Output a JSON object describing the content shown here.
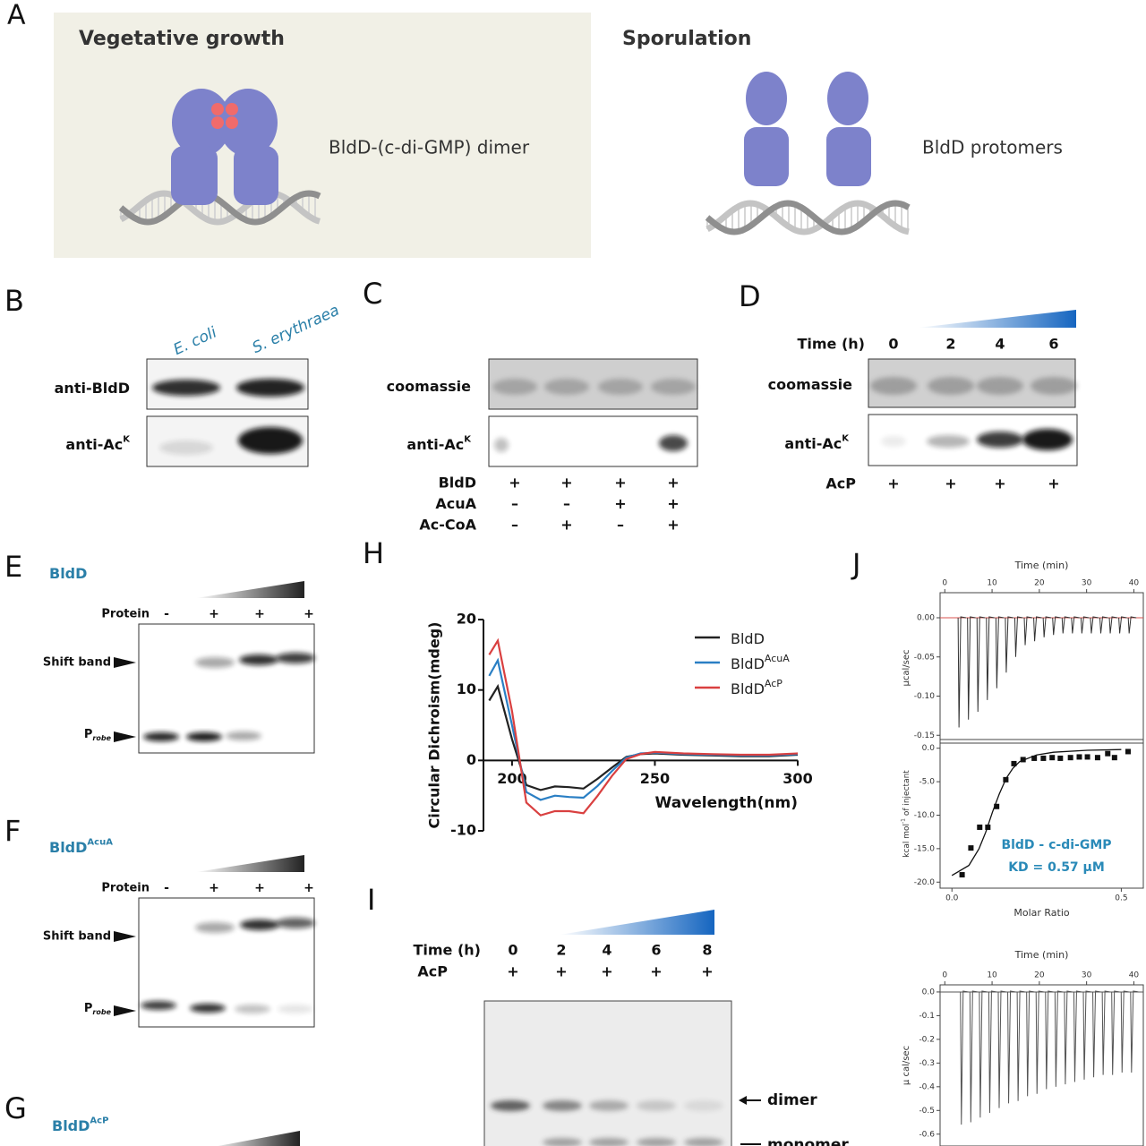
{
  "A": {
    "label": "A",
    "left": {
      "title": "Vegetative growth",
      "caption": "BldD-(c-di-GMP) dimer"
    },
    "right": {
      "title": "Sporulation",
      "caption": "BldD protomers"
    }
  },
  "B": {
    "label": "B",
    "lanes": [
      "E. coli",
      "S. erythraea"
    ],
    "rows": [
      {
        "text": "anti-BldD"
      },
      {
        "text": "anti-Ac",
        "sup": "K"
      }
    ]
  },
  "C": {
    "label": "C",
    "rows": [
      {
        "text": "coomassie"
      },
      {
        "text": "anti-Ac",
        "sup": "K"
      }
    ],
    "conditions": [
      {
        "name": "BldD",
        "signs": [
          "+",
          "+",
          "+",
          "+"
        ]
      },
      {
        "name": "AcuA",
        "signs": [
          "–",
          "–",
          "+",
          "+"
        ]
      },
      {
        "name": "Ac-CoA",
        "signs": [
          "–",
          "+",
          "–",
          "+"
        ]
      }
    ]
  },
  "D": {
    "label": "D",
    "time_label": "Time (h)",
    "times": [
      0,
      2,
      4,
      6
    ],
    "rows": [
      {
        "text": "coomassie"
      },
      {
        "text": "anti-Ac",
        "sup": "K"
      }
    ],
    "conditions": [
      {
        "name": "AcP",
        "signs": [
          "+",
          "+",
          "+",
          "+"
        ]
      }
    ]
  },
  "E": {
    "label": "E",
    "title": {
      "text": "BldD"
    },
    "protein_label": "Protein",
    "signs": [
      "-",
      "+",
      "+",
      "+"
    ],
    "shift_label": "Shift band",
    "probe": {
      "text": "P",
      "sub": "robe"
    }
  },
  "F": {
    "label": "F",
    "title": {
      "text": "BldD",
      "sup": "AcuA"
    },
    "protein_label": "Protein",
    "signs": [
      "-",
      "+",
      "+",
      "+"
    ],
    "shift_label": "Shift band",
    "probe": {
      "text": "P",
      "sub": "robe"
    }
  },
  "G": {
    "label": "G",
    "title": {
      "text": "BldD",
      "sup": "AcP"
    }
  },
  "H": {
    "label": "H"
  },
  "I": {
    "label": "I",
    "time_label": "Time (h)",
    "times": [
      0,
      2,
      4,
      6,
      8
    ],
    "conditions": [
      {
        "name": "AcP",
        "signs": [
          "+",
          "+",
          "+",
          "+",
          "+"
        ]
      }
    ],
    "bands": [
      "dimer",
      "monomer"
    ]
  },
  "J": {
    "label": "J"
  },
  "chart_data": [
    {
      "type": "line",
      "x_label": "Wavelength(nm)",
      "y_label": "Circular Dichroism(mdeg)",
      "xlim": [
        190,
        300
      ],
      "xticks": [
        200,
        250,
        300
      ],
      "ylim": [
        -10,
        20
      ],
      "yticks": [
        -10,
        0,
        10,
        20
      ],
      "x": [
        192,
        195,
        200,
        205,
        210,
        215,
        220,
        225,
        230,
        235,
        240,
        245,
        250,
        260,
        270,
        280,
        290,
        300
      ],
      "series": [
        {
          "name": "BldD",
          "color": "#222222",
          "values": [
            8.5,
            10.5,
            3,
            -3.5,
            -4.2,
            -3.7,
            -3.8,
            -4,
            -2.6,
            -1,
            0.5,
            0.9,
            1,
            0.8,
            0.7,
            0.6,
            0.6,
            0.8
          ]
        },
        {
          "name": "BldD",
          "name_sup": "AcuA",
          "color": "#2a7fc4",
          "values": [
            12,
            14.2,
            5,
            -4.5,
            -5.6,
            -5,
            -5.2,
            -5.3,
            -3.6,
            -1.5,
            0.4,
            1,
            1.1,
            0.9,
            0.8,
            0.7,
            0.7,
            0.9
          ]
        },
        {
          "name": "BldD",
          "name_sup": "AcP",
          "color": "#d94040",
          "values": [
            15,
            17,
            7,
            -6,
            -7.8,
            -7.2,
            -7.2,
            -7.5,
            -5,
            -2.2,
            0.2,
            0.9,
            1.2,
            1,
            0.9,
            0.8,
            0.8,
            1
          ]
        }
      ]
    },
    {
      "type": "spike",
      "x_label": "Time (min)",
      "y_label": "μcal/sec",
      "color": "#333333",
      "fit_color": "#d9534f",
      "xlim": [
        -1,
        42
      ],
      "xticks": [
        0,
        10,
        20,
        30,
        40
      ],
      "ylim": [
        -0.16,
        0.032
      ],
      "yticks": [
        {
          "value": 0,
          "label": "0.00"
        },
        {
          "value": -0.05,
          "label": "-0.05"
        },
        {
          "value": -0.1,
          "label": "-0.10"
        },
        {
          "value": -0.15,
          "label": "-0.15"
        }
      ],
      "x": [
        3,
        5,
        7,
        9,
        11,
        13,
        15,
        17,
        19,
        21,
        23,
        25,
        27,
        29,
        31,
        33,
        35,
        37,
        39
      ],
      "values": [
        -0.14,
        -0.13,
        -0.12,
        -0.105,
        -0.09,
        -0.07,
        -0.05,
        -0.035,
        -0.03,
        -0.025,
        -0.022,
        -0.02,
        -0.02,
        -0.02,
        -0.02,
        -0.02,
        -0.02,
        -0.02,
        -0.02
      ]
    },
    {
      "type": "scatter",
      "x_label": "Molar Ratio",
      "y_label": {
        "text": "kcal mol",
        "sup": "-1",
        "rest": " of injectant"
      },
      "color": "#111111",
      "annotations": [
        "BldD - c-di-GMP",
        "KD = 0.57 μM"
      ],
      "annotation_color": "#2a8ab8",
      "xlim": [
        -0.035,
        0.565
      ],
      "xticks": [
        {
          "value": 0,
          "label": "0.0"
        },
        {
          "value": 0.5,
          "label": "0.5"
        }
      ],
      "ylim": [
        -20.9,
        1.3
      ],
      "yticks": [
        {
          "value": 0,
          "label": "0.0"
        },
        {
          "value": -5,
          "label": "-5.0"
        },
        {
          "value": -10,
          "label": "-10.0"
        },
        {
          "value": -15,
          "label": "-15.0"
        },
        {
          "value": -20,
          "label": "-20.0"
        }
      ],
      "x": [
        0.03,
        0.056,
        0.082,
        0.106,
        0.132,
        0.159,
        0.183,
        0.21,
        0.243,
        0.27,
        0.296,
        0.32,
        0.35,
        0.376,
        0.4,
        0.43,
        0.46,
        0.48,
        0.52
      ],
      "values": [
        -18.9,
        -14.9,
        -11.8,
        -11.8,
        -8.7,
        -4.7,
        -2.3,
        -1.7,
        -1.5,
        -1.5,
        -1.4,
        -1.5,
        -1.4,
        -1.3,
        -1.3,
        -1.4,
        -0.8,
        -1.4,
        -0.5
      ],
      "fit": {
        "x": [
          0,
          0.05,
          0.08,
          0.1,
          0.12,
          0.14,
          0.16,
          0.18,
          0.2,
          0.25,
          0.3,
          0.4,
          0.5
        ],
        "values": [
          -19,
          -17.5,
          -15,
          -12.5,
          -9.5,
          -6.8,
          -4.5,
          -3,
          -2,
          -1,
          -0.6,
          -0.3,
          -0.2
        ]
      }
    },
    {
      "type": "spike",
      "x_label": "Time (min)",
      "y_label": "μ cal/sec",
      "color": "#555555",
      "xlim": [
        -1,
        42
      ],
      "xticks": [
        0,
        10,
        20,
        30,
        40
      ],
      "ylim": [
        -0.65,
        0.03
      ],
      "yticks": [
        {
          "value": 0,
          "label": "0.0"
        },
        {
          "value": -0.1,
          "label": "-0.1"
        },
        {
          "value": -0.2,
          "label": "-0.2"
        },
        {
          "value": -0.3,
          "label": "-0.3"
        },
        {
          "value": -0.4,
          "label": "-0.4"
        },
        {
          "value": -0.5,
          "label": "-0.5"
        },
        {
          "value": -0.6,
          "label": "-0.6"
        }
      ],
      "x": [
        3.5,
        5.5,
        7.5,
        9.5,
        11.5,
        13.5,
        15.5,
        17.5,
        19.5,
        21.5,
        23.5,
        25.5,
        27.5,
        29.5,
        31.5,
        33.5,
        35.5,
        37.5,
        39.5
      ],
      "values": [
        -0.56,
        -0.55,
        -0.53,
        -0.51,
        -0.49,
        -0.47,
        -0.46,
        -0.44,
        -0.43,
        -0.41,
        -0.4,
        -0.39,
        -0.38,
        -0.37,
        -0.36,
        -0.35,
        -0.35,
        -0.34,
        -0.34
      ]
    }
  ]
}
